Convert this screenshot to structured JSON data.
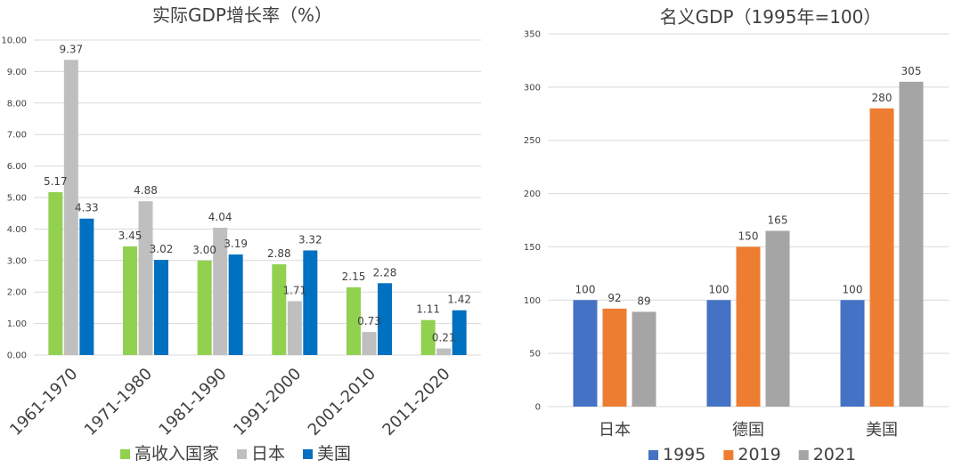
{
  "chart_data": [
    {
      "type": "bar",
      "title": "实际GDP增长率（%）",
      "categories": [
        "1961-1970",
        "1971-1980",
        "1981-1990",
        "1991-2000",
        "2001-2010",
        "2011-2020"
      ],
      "series": [
        {
          "name": "高收入国家",
          "values": [
            5.17,
            3.45,
            3.0,
            2.88,
            2.15,
            1.11
          ],
          "color": "#92d050"
        },
        {
          "name": "日本",
          "values": [
            9.37,
            4.88,
            4.04,
            1.71,
            0.73,
            0.21
          ],
          "color": "#bfbfbf"
        },
        {
          "name": "美国",
          "values": [
            4.33,
            3.02,
            3.19,
            3.32,
            2.28,
            1.42
          ],
          "color": "#0070c0"
        }
      ],
      "yticks": [
        "0.00",
        "1.00",
        "2.00",
        "3.00",
        "4.00",
        "5.00",
        "6.00",
        "7.00",
        "8.00",
        "9.00",
        "10.00"
      ],
      "ylim": [
        0,
        10
      ],
      "grid": true,
      "legend": "bottom"
    },
    {
      "type": "bar",
      "title": "名义GDP（1995年=100）",
      "categories": [
        "日本",
        "德国",
        "美国"
      ],
      "series": [
        {
          "name": "1995",
          "values": [
            100,
            100,
            100
          ],
          "color": "#4472c4"
        },
        {
          "name": "2019",
          "values": [
            92,
            150,
            280
          ],
          "color": "#ed7d31"
        },
        {
          "name": "2021",
          "values": [
            89,
            165,
            305
          ],
          "color": "#a5a5a5"
        }
      ],
      "yticks": [
        "0",
        "50",
        "100",
        "150",
        "200",
        "250",
        "300",
        "350"
      ],
      "ylim": [
        0,
        350
      ],
      "grid": true,
      "legend": "bottom"
    }
  ]
}
